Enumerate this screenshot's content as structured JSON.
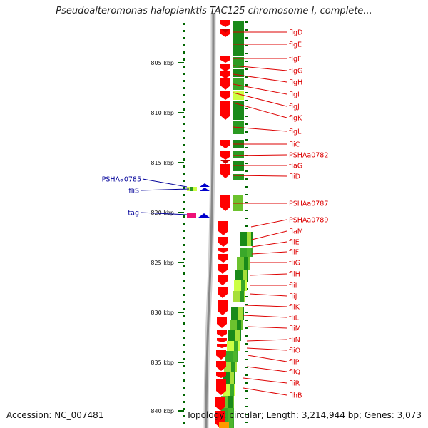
{
  "title": "Pseudoalteromonas haloplanktis TAC125 chromosome I, complete...",
  "footer": {
    "accession": "Accession: NC_007481",
    "topology": "Topology: circular; Length: 3,214,944 bp; Genes: 3,073"
  },
  "colors": {
    "forward_gene": "#ff0000",
    "reverse_gene": "#0000cc",
    "label_red": "#dd0000",
    "label_blue": "#000099",
    "backbone": "#888888",
    "tick": "#006600",
    "expression_dark": "#1a8a1a",
    "expression_light": "#ccff44"
  },
  "scale": {
    "ticks": [
      {
        "label": "805 kbp"
      },
      {
        "label": "810 kbp"
      },
      {
        "label": "815 kbp"
      },
      {
        "label": "820 kbp"
      },
      {
        "label": "825 kbp"
      },
      {
        "label": "830 kbp"
      },
      {
        "label": "835 kbp"
      },
      {
        "label": "840 kbp"
      }
    ]
  },
  "genes_right": [
    "flgD",
    "flgE",
    "flgF",
    "flgG",
    "flgH",
    "flgI",
    "flgJ",
    "flgK",
    "flgL",
    "fliC",
    "PSHAa0782",
    "flaG",
    "fliD",
    "PSHAa0787",
    "PSHAa0789",
    "flaM",
    "fliE",
    "fliF",
    "fliG",
    "fliH",
    "fliI",
    "fliJ",
    "fliK",
    "fliL",
    "fliM",
    "fliN",
    "fliO",
    "fliP",
    "fliQ",
    "fliR",
    "flhB"
  ],
  "genes_left": [
    "PSHAa0785",
    "fliS",
    "tag"
  ]
}
